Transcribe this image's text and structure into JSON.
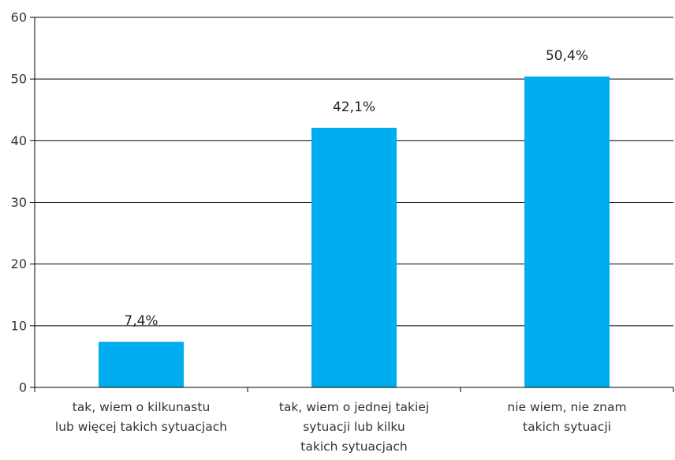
{
  "chart_data": {
    "type": "bar",
    "title": "",
    "xlabel": "",
    "ylabel": "",
    "ylim": [
      0,
      60
    ],
    "yticks": [
      0,
      10,
      20,
      30,
      40,
      50,
      60
    ],
    "grid": "horizontal",
    "legend": "none",
    "categories": [
      [
        "tak, wiem o kilkunastu",
        "lub więcej takich sytuacjach"
      ],
      [
        "tak, wiem o jednej takiej",
        "sytuacji lub kilku",
        "takich sytuacjach"
      ],
      [
        "nie wiem, nie znam",
        "takich sytuacji"
      ]
    ],
    "values": [
      7.4,
      42.1,
      50.4
    ],
    "data_labels": [
      "7,4%",
      "42,1%",
      "50,4%"
    ],
    "colors": {
      "bar": "#00AEEF",
      "grid": "#000000",
      "axis": "#000000"
    }
  }
}
